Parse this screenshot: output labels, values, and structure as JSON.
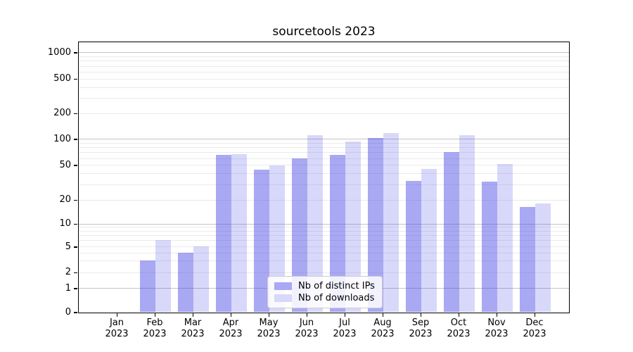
{
  "title": "sourcetools 2023",
  "legend": {
    "items": [
      {
        "label": "Nb of distinct IPs",
        "color": "#a8a8f4"
      },
      {
        "label": "Nb of downloads",
        "color": "#d8d8f8"
      }
    ]
  },
  "chart_data": {
    "type": "bar",
    "title": "sourcetools 2023",
    "categories": [
      "Jan 2023",
      "Feb 2023",
      "Mar 2023",
      "Apr 2023",
      "May 2023",
      "Jun 2023",
      "Jul 2023",
      "Aug 2023",
      "Sep 2023",
      "Oct 2023",
      "Nov 2023",
      "Dec 2023"
    ],
    "series": [
      {
        "name": "Nb of distinct IPs",
        "color": "#a8a8f4",
        "fill": "rgba(70,70,230,0.47)",
        "values": [
          0,
          3,
          4,
          65,
          44,
          60,
          65,
          103,
          33,
          71,
          32,
          16
        ]
      },
      {
        "name": "Nb of downloads",
        "color": "#d8d8f8",
        "fill": "rgba(70,70,230,0.21)",
        "values": [
          0,
          6,
          5,
          66,
          49,
          110,
          93,
          118,
          45,
          110,
          51,
          18
        ]
      }
    ],
    "xlabel": "",
    "ylabel": "",
    "yscale": "symlog",
    "yticks": [
      0,
      1,
      2,
      5,
      10,
      20,
      50,
      100,
      200,
      500,
      1000
    ],
    "ylim": [
      0,
      1300
    ],
    "grid": {
      "major_at": [
        1,
        10,
        100,
        1000
      ],
      "major_color": "#c3c3c3",
      "minor_color": "#ebebeb"
    },
    "legend_position": "lower center"
  }
}
